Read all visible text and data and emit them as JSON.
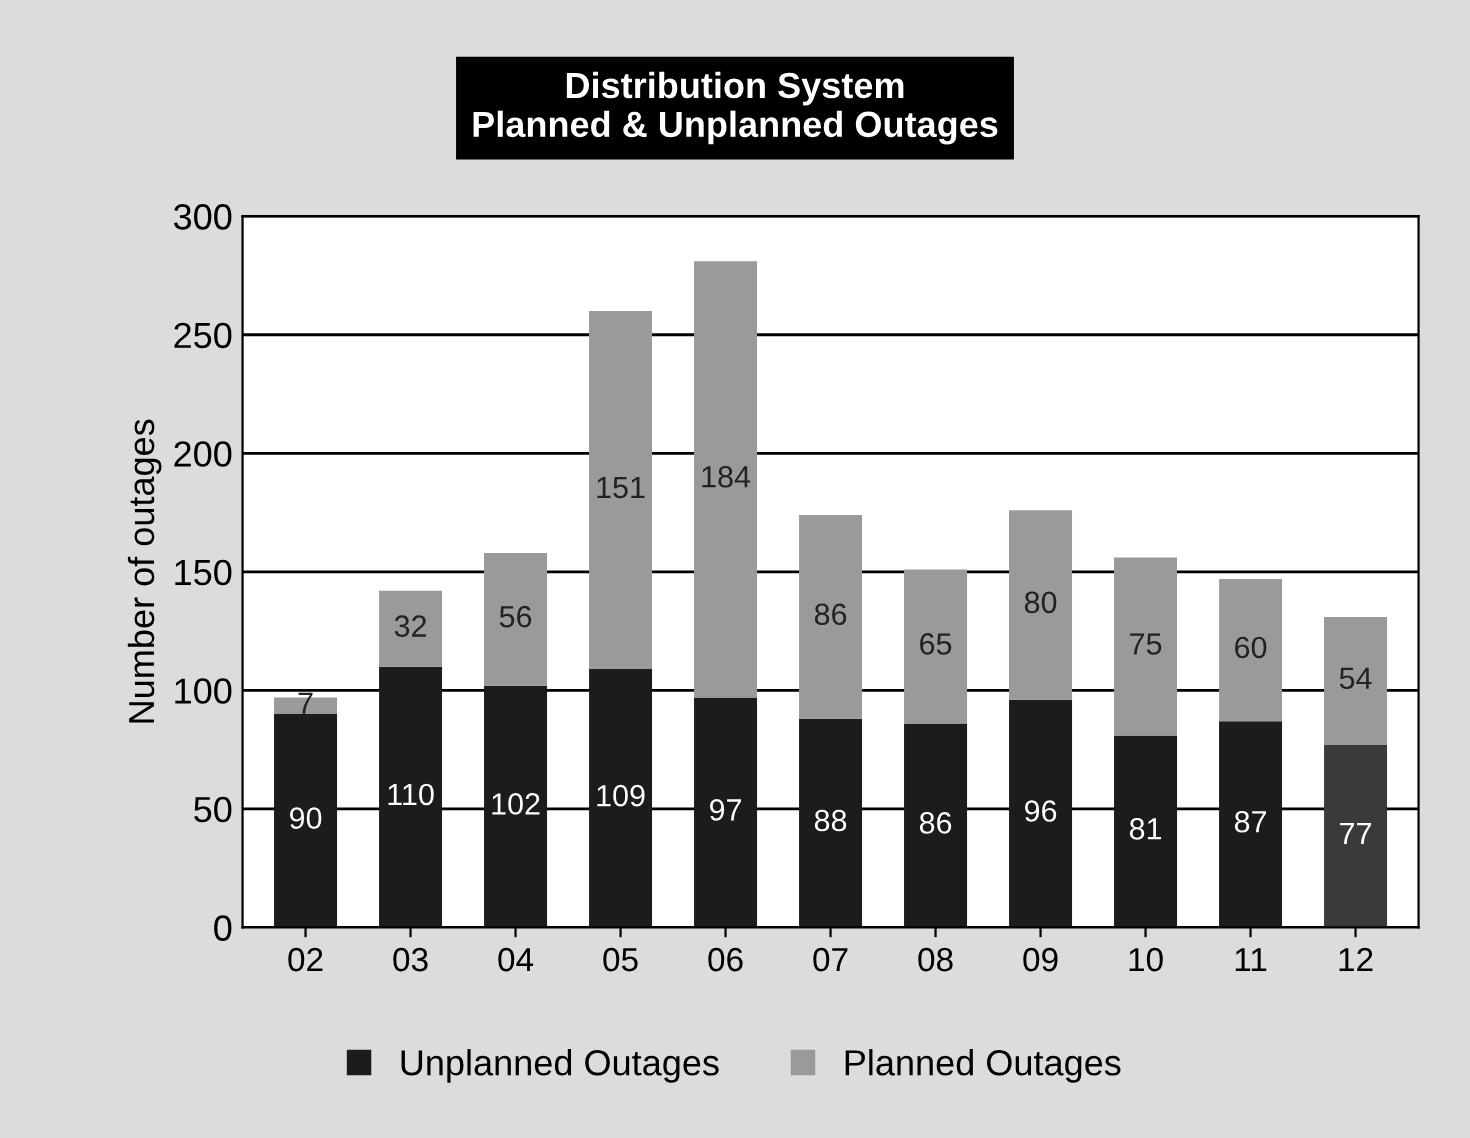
{
  "chart_data": {
    "type": "bar",
    "title": "Distribution System\nPlanned & Unplanned Outages",
    "ylabel": "Number of outages",
    "categories": [
      "02",
      "03",
      "04",
      "05",
      "06",
      "07",
      "08",
      "09",
      "10",
      "11",
      "12"
    ],
    "stacked": true,
    "series": [
      {
        "name": "Unplanned Outages",
        "color": "#1c1c1c",
        "colors": [
          "#1c1c1c",
          "#1c1c1c",
          "#1c1c1c",
          "#1c1c1c",
          "#1c1c1c",
          "#1c1c1c",
          "#1c1c1c",
          "#1c1c1c",
          "#1c1c1c",
          "#1c1c1c",
          "#3a3a3a"
        ],
        "values": [
          90,
          110,
          102,
          109,
          97,
          88,
          86,
          96,
          81,
          87,
          77
        ]
      },
      {
        "name": "Planned Outages",
        "color": "#9a9a9a",
        "values": [
          7,
          32,
          56,
          151,
          184,
          86,
          65,
          80,
          75,
          60,
          54
        ]
      }
    ],
    "ylim": [
      0,
      300
    ],
    "yticks": [
      0,
      50,
      100,
      150,
      200,
      250,
      300
    ],
    "grid": "y",
    "legend": "bottom",
    "data_labels": true
  }
}
